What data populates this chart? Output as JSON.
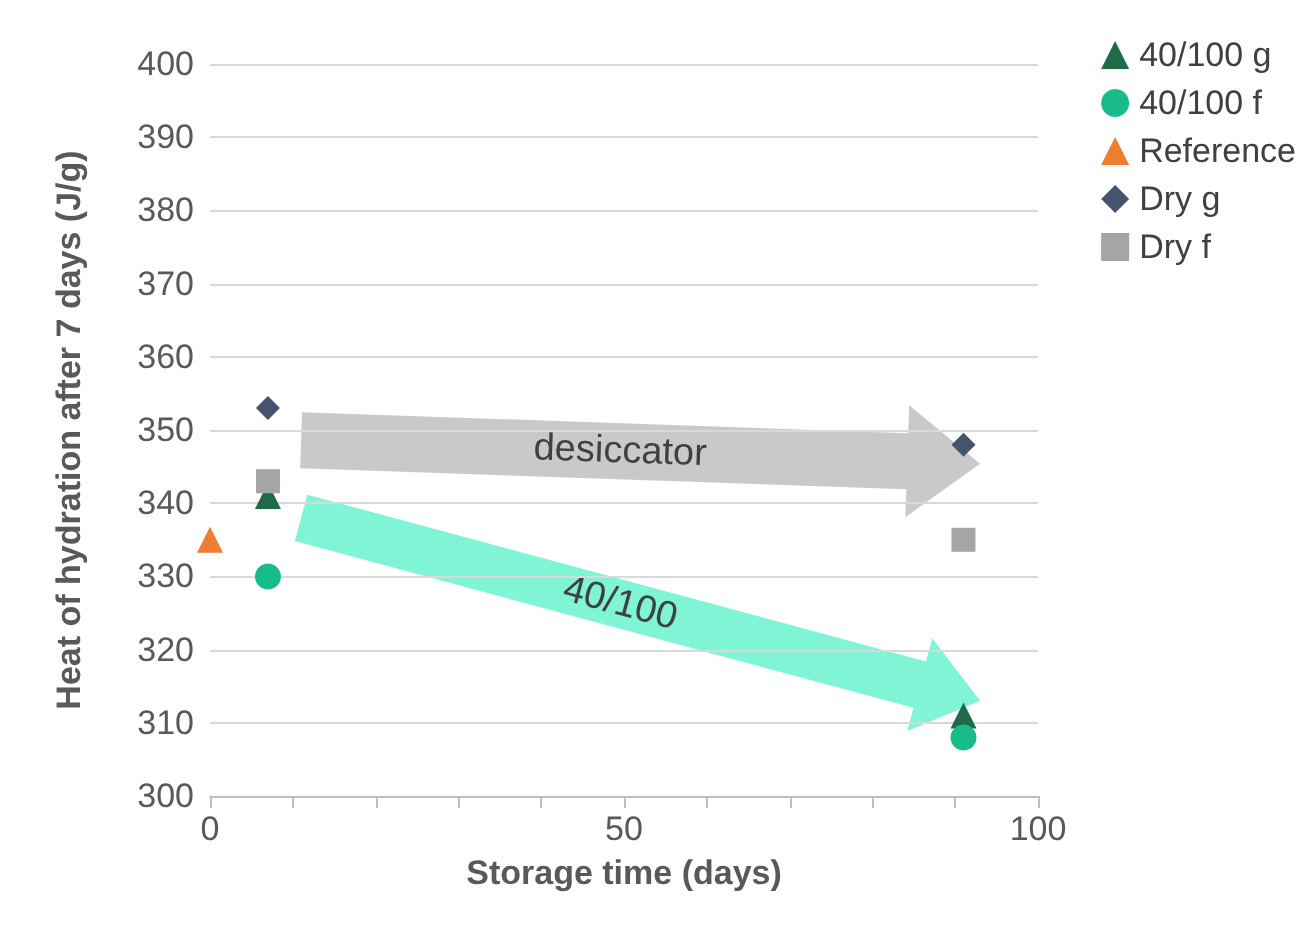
{
  "chart_data": {
    "type": "scatter",
    "xlabel": "Storage time (days)",
    "ylabel": "Heat of hydration after 7 days (J/g)",
    "xlim": [
      0,
      100
    ],
    "xticks": [
      0,
      {
        "value": 10,
        "label": null
      },
      {
        "value": 20,
        "label": null
      },
      {
        "value": 30,
        "label": null
      },
      {
        "value": 40,
        "label": null
      },
      50,
      {
        "value": 60,
        "label": null
      },
      {
        "value": 70,
        "label": null
      },
      {
        "value": 80,
        "label": null
      },
      {
        "value": 90,
        "label": null
      },
      100
    ],
    "ylim": [
      300,
      400
    ],
    "yticks": [
      300,
      310,
      320,
      330,
      340,
      350,
      360,
      370,
      380,
      390,
      400
    ],
    "grid": "y",
    "legend": "right",
    "annotations": [
      "desiccator",
      "40/100"
    ],
    "series": [
      {
        "name": "40/100 g",
        "color": "#1e6b48",
        "marker": "triangle",
        "x": [
          7,
          91
        ],
        "values": [
          341,
          311
        ]
      },
      {
        "name": "40/100 f",
        "color": "#18bc8a",
        "marker": "circle",
        "x": [
          7,
          91
        ],
        "values": [
          330,
          308
        ]
      },
      {
        "name": "Reference",
        "color": "#ed7d31",
        "marker": "triangle",
        "x": [
          0
        ],
        "values": [
          335
        ]
      },
      {
        "name": "Dry g",
        "color": "#44546a",
        "marker": "diamond",
        "x": [
          7,
          91
        ],
        "values": [
          353,
          348
        ]
      },
      {
        "name": "Dry f",
        "color": "#a5a5a5",
        "marker": "square",
        "x": [
          7,
          91
        ],
        "values": [
          343,
          335
        ]
      }
    ]
  }
}
